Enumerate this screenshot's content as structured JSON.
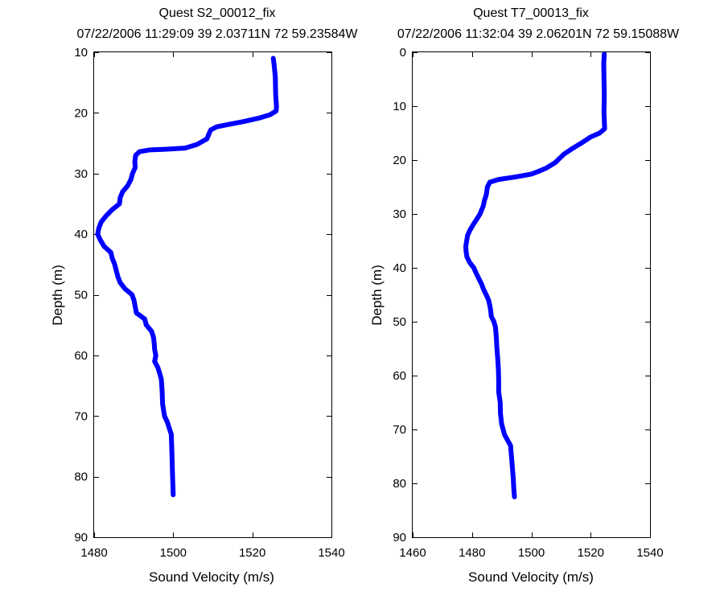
{
  "chart_data": [
    {
      "type": "line",
      "title": "Quest S2_00012_fix",
      "subtitle": "07/22/2006 11:29:09 39 2.03711N 72 59.23584W",
      "xlabel": "Sound Velocity (m/s)",
      "ylabel": "Depth (m)",
      "xlim": [
        1480,
        1540
      ],
      "ylim": [
        10,
        90
      ],
      "y_reversed": true,
      "grid": false,
      "xticks": [
        "1480",
        "1500",
        "1520",
        "1540"
      ],
      "yticks": [
        "10",
        "20",
        "30",
        "40",
        "50",
        "60",
        "70",
        "80",
        "90"
      ],
      "series": [
        {
          "color": "#0000ff",
          "points": [
            [
              1525.3,
              11
            ],
            [
              1525.5,
              12
            ],
            [
              1525.8,
              14
            ],
            [
              1525.9,
              17
            ],
            [
              1526.1,
              19
            ],
            [
              1526.0,
              19.7
            ],
            [
              1524.5,
              20.3
            ],
            [
              1522,
              20.8
            ],
            [
              1518,
              21.4
            ],
            [
              1514,
              21.9
            ],
            [
              1511,
              22.3
            ],
            [
              1509.5,
              22.8
            ],
            [
              1509,
              23.5
            ],
            [
              1508.5,
              24.3
            ],
            [
              1506,
              25.2
            ],
            [
              1503,
              25.8
            ],
            [
              1498,
              26.0
            ],
            [
              1494,
              26.1
            ],
            [
              1491.5,
              26.4
            ],
            [
              1490.5,
              27.0
            ],
            [
              1490.3,
              28
            ],
            [
              1490.4,
              29
            ],
            [
              1489.7,
              30
            ],
            [
              1489.3,
              31
            ],
            [
              1488.5,
              32
            ],
            [
              1487.2,
              33
            ],
            [
              1486.6,
              34
            ],
            [
              1486.4,
              35
            ],
            [
              1484.5,
              36
            ],
            [
              1483,
              37
            ],
            [
              1481.8,
              38
            ],
            [
              1481.2,
              39
            ],
            [
              1480.9,
              40
            ],
            [
              1481.6,
              41
            ],
            [
              1482.5,
              42
            ],
            [
              1484.2,
              43
            ],
            [
              1484.6,
              44
            ],
            [
              1485.2,
              45
            ],
            [
              1485.6,
              46
            ],
            [
              1486.0,
              47
            ],
            [
              1486.6,
              48
            ],
            [
              1487.8,
              49
            ],
            [
              1489.6,
              50
            ],
            [
              1490.1,
              51
            ],
            [
              1490.4,
              52
            ],
            [
              1490.7,
              53
            ],
            [
              1492.8,
              54
            ],
            [
              1493.2,
              55
            ],
            [
              1494.5,
              56
            ],
            [
              1495.0,
              57
            ],
            [
              1495.2,
              58
            ],
            [
              1495.3,
              59
            ],
            [
              1495.6,
              60
            ],
            [
              1495.3,
              61
            ],
            [
              1496.1,
              62
            ],
            [
              1496.6,
              63
            ],
            [
              1497.0,
              64
            ],
            [
              1497.2,
              66
            ],
            [
              1497.3,
              68
            ],
            [
              1497.8,
              70
            ],
            [
              1498.5,
              71
            ],
            [
              1499.0,
              72
            ],
            [
              1499.5,
              73
            ],
            [
              1499.6,
              75
            ],
            [
              1499.7,
              77
            ],
            [
              1499.8,
              79
            ],
            [
              1499.9,
              81
            ],
            [
              1500.0,
              83
            ]
          ]
        }
      ]
    },
    {
      "type": "line",
      "title": "Quest T7_00013_fix",
      "subtitle": "07/22/2006 11:32:04 39 2.06201N 72 59.15088W",
      "xlabel": "Sound Velocity (m/s)",
      "ylabel": "Depth (m)",
      "xlim": [
        1460,
        1540
      ],
      "ylim": [
        0,
        90
      ],
      "y_reversed": true,
      "grid": false,
      "xticks": [
        "1460",
        "1480",
        "1500",
        "1520",
        "1540"
      ],
      "yticks": [
        "0",
        "10",
        "20",
        "30",
        "40",
        "50",
        "60",
        "70",
        "80",
        "90"
      ],
      "series": [
        {
          "color": "#0000ff",
          "points": [
            [
              1524.6,
              0.3
            ],
            [
              1524.4,
              2
            ],
            [
              1524.5,
              5
            ],
            [
              1524.6,
              8
            ],
            [
              1524.5,
              11
            ],
            [
              1524.7,
              14.2
            ],
            [
              1523,
              15
            ],
            [
              1520,
              15.7
            ],
            [
              1517,
              16.8
            ],
            [
              1514,
              17.8
            ],
            [
              1511,
              18.9
            ],
            [
              1508,
              20.5
            ],
            [
              1505,
              21.5
            ],
            [
              1502,
              22.2
            ],
            [
              1500,
              22.6
            ],
            [
              1498,
              22.8
            ],
            [
              1494,
              23.2
            ],
            [
              1489,
              23.6
            ],
            [
              1486,
              24.1
            ],
            [
              1485.2,
              25
            ],
            [
              1484.8,
              26.5
            ],
            [
              1484.2,
              27.5
            ],
            [
              1483.8,
              28.5
            ],
            [
              1482.7,
              30
            ],
            [
              1481.6,
              31
            ],
            [
              1480.4,
              32
            ],
            [
              1479.3,
              33
            ],
            [
              1478.5,
              34
            ],
            [
              1478.2,
              35
            ],
            [
              1477.9,
              36
            ],
            [
              1478.0,
              37
            ],
            [
              1478.3,
              38
            ],
            [
              1479.2,
              39
            ],
            [
              1480.6,
              40
            ],
            [
              1481.4,
              41
            ],
            [
              1482.3,
              42
            ],
            [
              1483.2,
              43
            ],
            [
              1483.9,
              44
            ],
            [
              1484.8,
              45
            ],
            [
              1485.6,
              46
            ],
            [
              1486.0,
              47
            ],
            [
              1486.3,
              48
            ],
            [
              1486.5,
              49
            ],
            [
              1487.4,
              50
            ],
            [
              1487.9,
              51
            ],
            [
              1488.2,
              53
            ],
            [
              1488.4,
              55
            ],
            [
              1488.7,
              57
            ],
            [
              1488.9,
              59
            ],
            [
              1489.0,
              61
            ],
            [
              1489.0,
              63
            ],
            [
              1489.5,
              65
            ],
            [
              1489.6,
              67
            ],
            [
              1490.0,
              69
            ],
            [
              1491.0,
              71
            ],
            [
              1492.0,
              72
            ],
            [
              1493.0,
              73
            ],
            [
              1493.3,
              75
            ],
            [
              1493.6,
              77
            ],
            [
              1493.9,
              79
            ],
            [
              1494.1,
              81
            ],
            [
              1494.3,
              82.5
            ]
          ]
        }
      ]
    }
  ]
}
